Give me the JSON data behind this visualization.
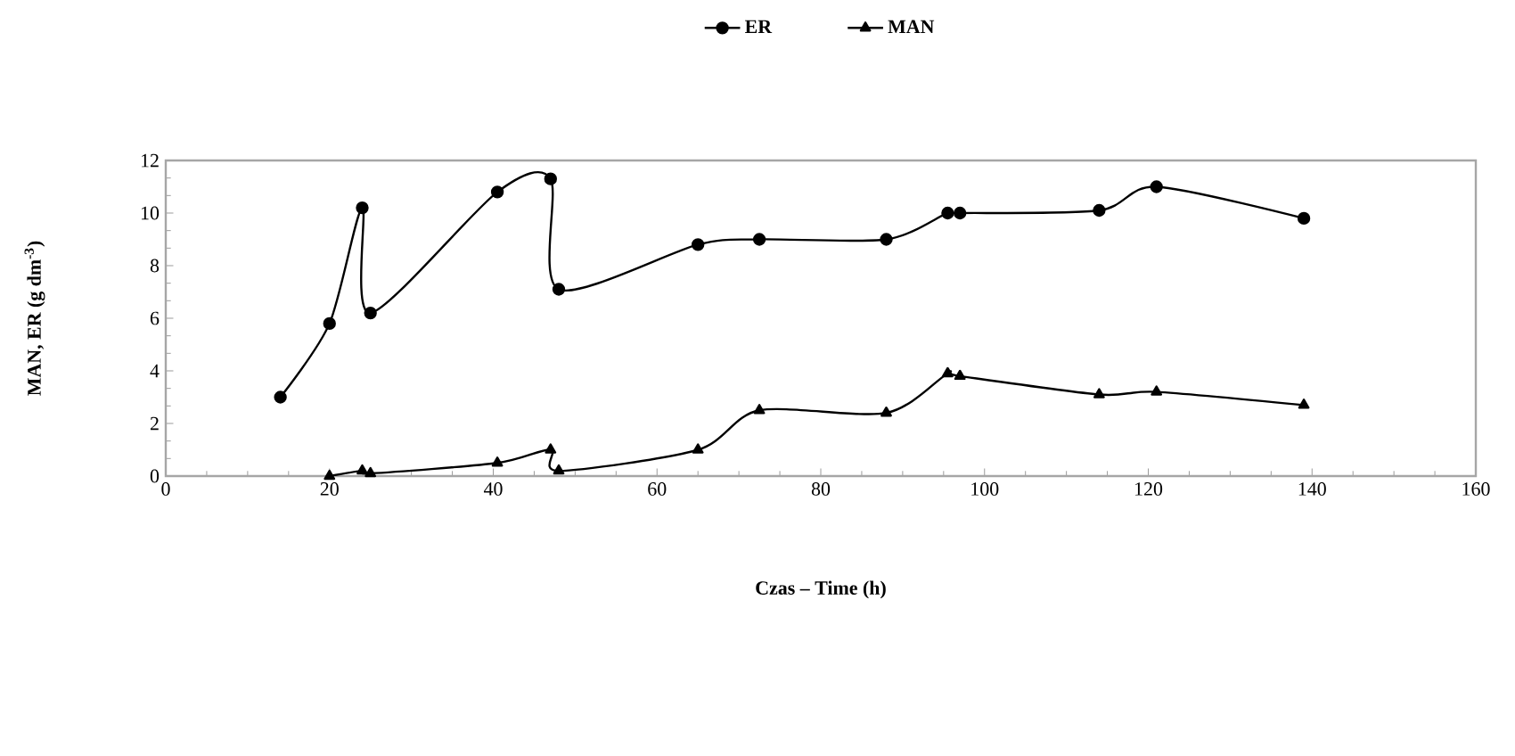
{
  "chart_data": {
    "type": "line",
    "xlabel": "Czas – Time (h)",
    "ylabel": "MAN, ER (g dm$^{-3}$)",
    "xlim": [
      0,
      160
    ],
    "xticks": [
      0,
      20,
      40,
      60,
      80,
      100,
      120,
      140,
      160
    ],
    "ylim": [
      0,
      12
    ],
    "yticks": [
      0,
      2,
      4,
      6,
      8,
      10,
      12
    ],
    "legend": "top",
    "line_style": "solid",
    "series": [
      {
        "name": "ER",
        "color": "#000000",
        "marker": "circle",
        "x": [
          14,
          20,
          24,
          25,
          40.5,
          47,
          48,
          65,
          72.5,
          88,
          95.5,
          97,
          114,
          121,
          139
        ],
        "values": [
          3.0,
          5.8,
          10.2,
          6.2,
          10.8,
          11.3,
          7.1,
          8.8,
          9.0,
          9.0,
          10.0,
          10.0,
          10.1,
          11.0,
          9.8
        ]
      },
      {
        "name": "MAN",
        "color": "#000000",
        "marker": "triangle",
        "x": [
          20,
          24,
          25,
          40.5,
          47,
          48,
          65,
          72.5,
          88,
          95.5,
          97,
          114,
          121,
          139
        ],
        "values": [
          0.0,
          0.2,
          0.1,
          0.5,
          1.0,
          0.2,
          1.0,
          2.5,
          2.4,
          3.9,
          3.8,
          3.1,
          3.2,
          2.7
        ]
      }
    ]
  }
}
